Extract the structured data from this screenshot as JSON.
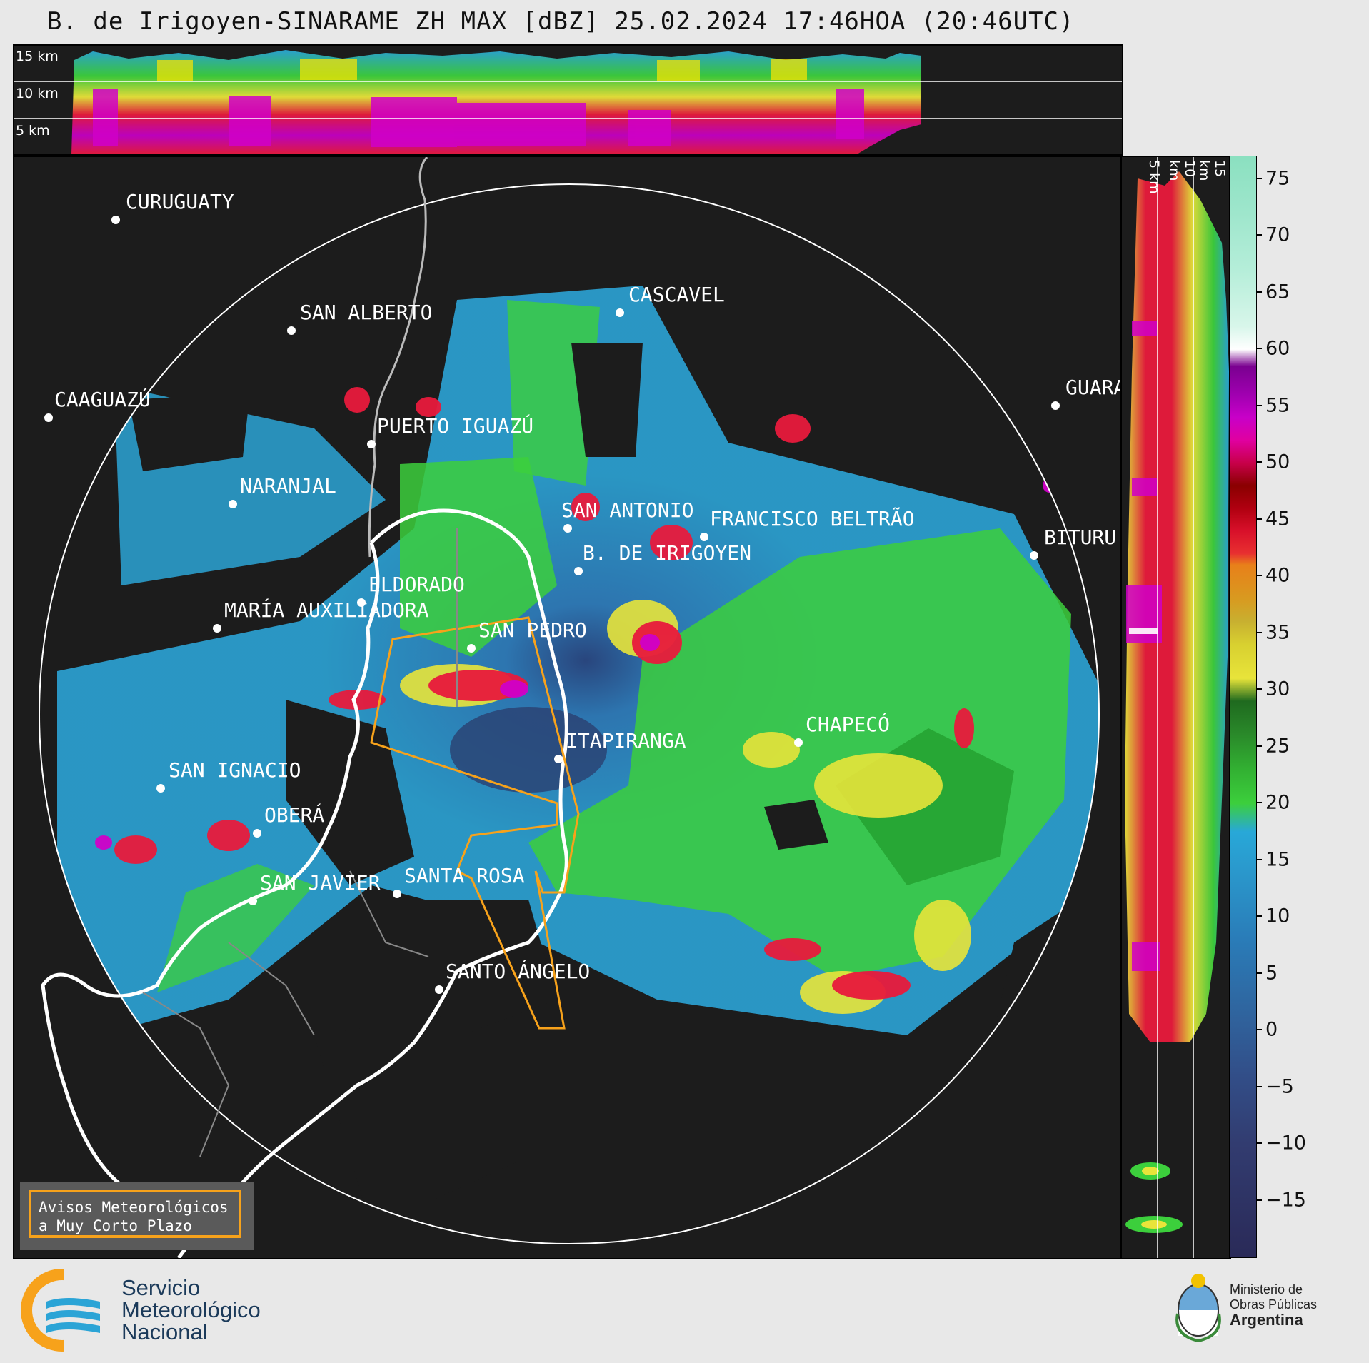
{
  "title": "B. de Irigoyen-SINARAME ZH MAX [dBZ] 25.02.2024 17:46HOA (20:46UTC)",
  "top_panel": {
    "height_labels": [
      "15 km",
      "10 km",
      "5 km"
    ]
  },
  "side_panel": {
    "height_labels": [
      "5 km",
      "10 km",
      "15 km"
    ]
  },
  "legend": {
    "line1": "Avisos Meteorológicos",
    "line2": "a Muy Corto Plazo",
    "border_color": "#f7a21b"
  },
  "colorbar": {
    "unit": "dBZ",
    "ticks": [
      "75",
      "70",
      "65",
      "60",
      "55",
      "50",
      "45",
      "40",
      "35",
      "30",
      "25",
      "20",
      "15",
      "10",
      "5",
      "0",
      "−5",
      "−10",
      "−15"
    ],
    "min": -20,
    "max": 77
  },
  "cities": [
    {
      "name": "CURUGUATY"
    },
    {
      "name": "SAN ALBERTO"
    },
    {
      "name": "CASCAVEL"
    },
    {
      "name": "CAAGUAZÚ"
    },
    {
      "name": "GUARA"
    },
    {
      "name": "PUERTO IGUAZÚ"
    },
    {
      "name": "NARANJAL"
    },
    {
      "name": "SAN ANTONIO"
    },
    {
      "name": "FRANCISCO BELTRÃO"
    },
    {
      "name": "BITURU"
    },
    {
      "name": "B. DE IRIGOYEN"
    },
    {
      "name": "ELDORADO"
    },
    {
      "name": "MARÍA AUXILIADORA"
    },
    {
      "name": "SAN PEDRO"
    },
    {
      "name": "ITAPIRANGA"
    },
    {
      "name": "CHAPECÓ"
    },
    {
      "name": "SAN IGNACIO"
    },
    {
      "name": "OBERÁ"
    },
    {
      "name": "SAN JAVIER"
    },
    {
      "name": "SANTA ROSA"
    },
    {
      "name": "SANTO ÁNGELO"
    }
  ],
  "footer": {
    "smn_line1": "Servicio",
    "smn_line2": "Meteorológico",
    "smn_line3": "Nacional",
    "min_line1": "Ministerio de",
    "min_line2": "Obras Públicas",
    "min_line3": "Argentina"
  }
}
